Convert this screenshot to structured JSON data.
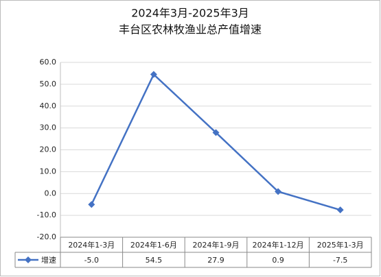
{
  "chart_data": {
    "type": "line",
    "title": "2024年3月-2025年3月",
    "subtitle": "丰台区农林牧渔业总产值增速",
    "categories": [
      "2024年1-3月",
      "2024年1-6月",
      "2024年1-9月",
      "2024年1-12月",
      "2025年1-3月"
    ],
    "series": [
      {
        "name": "增速",
        "color": "#4472c4",
        "values": [
          -5.0,
          54.5,
          27.9,
          0.9,
          -7.5
        ],
        "value_labels": [
          "-5.0",
          "54.5",
          "27.9",
          "0.9",
          "-7.5"
        ]
      }
    ],
    "ylim": [
      -20,
      60
    ],
    "yticks": [
      {
        "value": -20,
        "label": "-20.0"
      },
      {
        "value": -10,
        "label": "-10.0"
      },
      {
        "value": 0,
        "label": "0.0"
      },
      {
        "value": 10,
        "label": "10.0"
      },
      {
        "value": 20,
        "label": "20.0"
      },
      {
        "value": 30,
        "label": "30.0"
      },
      {
        "value": 40,
        "label": "40.0"
      },
      {
        "value": 50,
        "label": "50.0"
      },
      {
        "value": 60,
        "label": "60.0"
      }
    ],
    "grid": true
  }
}
